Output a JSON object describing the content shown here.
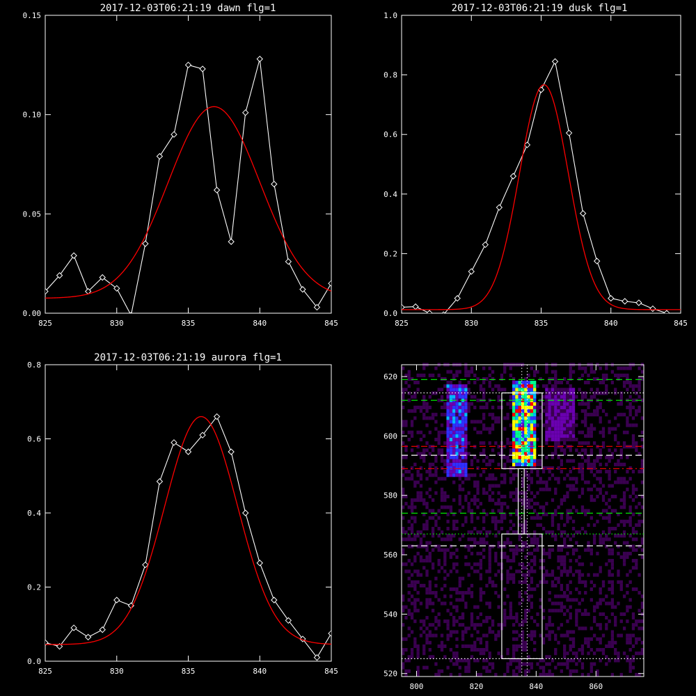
{
  "chart_data": [
    {
      "type": "line",
      "panel": "dawn",
      "title": "2017-12-03T06:21:19 dawn flg=1",
      "xlim": [
        825,
        845
      ],
      "ylim": [
        0,
        0.15
      ],
      "xticks": [
        "825",
        "830",
        "835",
        "840",
        "845"
      ],
      "yticks": [
        "0.00",
        "0.05",
        "0.10",
        "0.15"
      ],
      "series": [
        {
          "marker": "diamond",
          "color": "#ffffff",
          "x": [
            825,
            826,
            827,
            828,
            829,
            830,
            831,
            832,
            833,
            834,
            835,
            836,
            837,
            838,
            839,
            840,
            841,
            842,
            843,
            844,
            845
          ],
          "y": [
            0.011,
            0.019,
            0.029,
            0.011,
            0.018,
            0.0125,
            -0.001,
            0.035,
            0.079,
            0.09,
            0.125,
            0.123,
            0.062,
            0.036,
            0.101,
            0.128,
            0.065,
            0.026,
            0.012,
            0.003,
            0.015
          ]
        },
        {
          "color": "#ff0000",
          "fit": {
            "amplitude": 0.0965,
            "center": 836.8,
            "sigma": 3.2,
            "baseline": 0.0075
          }
        }
      ]
    },
    {
      "type": "line",
      "panel": "dusk",
      "title": "2017-12-03T06:21:19 dusk flg=1",
      "xlim": [
        825,
        845
      ],
      "ylim": [
        0,
        1.0
      ],
      "xticks": [
        "825",
        "830",
        "835",
        "840",
        "845"
      ],
      "yticks": [
        "0.0",
        "0.2",
        "0.4",
        "0.6",
        "0.8",
        "1.0"
      ],
      "series": [
        {
          "marker": "diamond",
          "color": "#ffffff",
          "x": [
            825,
            826,
            827,
            828,
            829,
            830,
            831,
            832,
            833,
            834,
            835,
            836,
            837,
            838,
            839,
            840,
            841,
            842,
            843,
            844,
            845
          ],
          "y": [
            0.02,
            0.022,
            0.0,
            -0.005,
            0.05,
            0.14,
            0.23,
            0.355,
            0.46,
            0.565,
            0.75,
            0.845,
            0.605,
            0.335,
            0.175,
            0.05,
            0.04,
            0.035,
            0.015,
            0.0,
            -0.01
          ]
        },
        {
          "color": "#ff0000",
          "fit": {
            "amplitude": 0.755,
            "center": 835.2,
            "sigma": 1.75,
            "baseline": 0.012
          }
        }
      ]
    },
    {
      "type": "line",
      "panel": "aurora",
      "title": "2017-12-03T06:21:19 aurora flg=1",
      "xlim": [
        825,
        845
      ],
      "ylim": [
        0,
        0.8
      ],
      "xticks": [
        "825",
        "830",
        "835",
        "840",
        "845"
      ],
      "yticks": [
        "0.0",
        "0.2",
        "0.4",
        "0.6",
        "0.8"
      ],
      "series": [
        {
          "marker": "diamond",
          "color": "#ffffff",
          "x": [
            825,
            826,
            827,
            828,
            829,
            830,
            831,
            832,
            833,
            834,
            835,
            836,
            837,
            838,
            839,
            840,
            841,
            842,
            843,
            844,
            845
          ],
          "y": [
            0.05,
            0.04,
            0.09,
            0.065,
            0.085,
            0.165,
            0.15,
            0.26,
            0.485,
            0.59,
            0.565,
            0.61,
            0.66,
            0.565,
            0.4,
            0.265,
            0.165,
            0.11,
            0.06,
            0.01,
            0.075
          ]
        },
        {
          "color": "#ff0000",
          "fit": {
            "amplitude": 0.615,
            "center": 835.9,
            "sigma": 2.55,
            "baseline": 0.045
          }
        }
      ]
    },
    {
      "type": "heatmap",
      "panel": "image",
      "title": "",
      "xlim": [
        795,
        876
      ],
      "ylim": [
        519,
        624
      ],
      "xticks": [
        "800",
        "820",
        "840",
        "860"
      ],
      "yticks": [
        "520",
        "540",
        "560",
        "580",
        "600",
        "620"
      ],
      "colormap": [
        "#000000",
        "#3a0050",
        "#6a00b0",
        "#3030ff",
        "#00b8ff",
        "#00ff90",
        "#ffff00",
        "#ff0000"
      ],
      "emission_columns": [
        {
          "x_range": [
            810,
            816
          ],
          "y_range": [
            586,
            617
          ],
          "peak": 0.55
        },
        {
          "x_range": [
            832,
            839
          ],
          "y_range": [
            589,
            618
          ],
          "peak": 1.0
        },
        {
          "x_range": [
            843,
            852
          ],
          "y_range": [
            598,
            616
          ],
          "peak": 0.35
        }
      ],
      "hlines": [
        {
          "y": 619,
          "color": "#00ff00",
          "style": "dashed"
        },
        {
          "y": 612,
          "color": "#00ff00",
          "style": "dashed"
        },
        {
          "y": 614.5,
          "color": "#ffffff",
          "style": "dotted"
        },
        {
          "y": 596.5,
          "color": "#ff0000",
          "style": "dashed"
        },
        {
          "y": 593.5,
          "color": "#ffffff",
          "style": "dashed"
        },
        {
          "y": 589,
          "color": "#ff0000",
          "style": "dashdot"
        },
        {
          "y": 574,
          "color": "#00ff00",
          "style": "dashed"
        },
        {
          "y": 567,
          "color": "#00ff00",
          "style": "dotted"
        },
        {
          "y": 563,
          "color": "#ffffff",
          "style": "dashed"
        },
        {
          "y": 525,
          "color": "#ffffff",
          "style": "dotted"
        }
      ],
      "vlines": [
        {
          "x": 835.2,
          "color": "#ffffff",
          "style": "dotted"
        },
        {
          "x": 837.0,
          "color": "#ffffff",
          "style": "dotted"
        }
      ],
      "boxes": [
        {
          "x": [
            828.5,
            842.0
          ],
          "y": [
            589,
            614.5
          ]
        },
        {
          "x": [
            834.0,
            836.0
          ],
          "y": [
            567,
            589
          ]
        },
        {
          "x": [
            828.5,
            842.0
          ],
          "y": [
            525,
            567
          ]
        }
      ]
    }
  ]
}
